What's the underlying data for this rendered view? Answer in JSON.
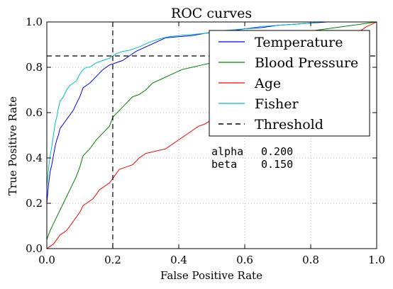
{
  "chart_data": {
    "type": "line",
    "title": "ROC curves",
    "xlabel": "False Positive Rate",
    "ylabel": "True Positive Rate",
    "xlim": [
      0.0,
      1.0
    ],
    "ylim": [
      0.0,
      1.0
    ],
    "xticks": [
      "0.0",
      "0.2",
      "0.4",
      "0.6",
      "0.8",
      "1.0"
    ],
    "yticks": [
      "0.0",
      "0.2",
      "0.4",
      "0.6",
      "0.8",
      "1.0"
    ],
    "grid": true,
    "legend_position": "top-right",
    "series": [
      {
        "name": "Temperature",
        "color": "#0000ff",
        "points": [
          [
            0,
            0.2
          ],
          [
            0.005,
            0.28
          ],
          [
            0.01,
            0.34
          ],
          [
            0.015,
            0.37
          ],
          [
            0.02,
            0.41
          ],
          [
            0.025,
            0.45
          ],
          [
            0.03,
            0.48
          ],
          [
            0.035,
            0.5
          ],
          [
            0.04,
            0.53
          ],
          [
            0.05,
            0.55
          ],
          [
            0.06,
            0.57
          ],
          [
            0.07,
            0.59
          ],
          [
            0.08,
            0.61
          ],
          [
            0.09,
            0.64
          ],
          [
            0.1,
            0.67
          ],
          [
            0.11,
            0.71
          ],
          [
            0.13,
            0.73
          ],
          [
            0.15,
            0.76
          ],
          [
            0.17,
            0.79
          ],
          [
            0.19,
            0.81
          ],
          [
            0.21,
            0.82
          ],
          [
            0.23,
            0.83
          ],
          [
            0.25,
            0.85
          ],
          [
            0.27,
            0.87
          ],
          [
            0.3,
            0.89
          ],
          [
            0.33,
            0.91
          ],
          [
            0.36,
            0.93
          ],
          [
            0.4,
            0.935
          ],
          [
            0.44,
            0.94
          ],
          [
            0.48,
            0.95
          ],
          [
            0.52,
            0.955
          ],
          [
            0.56,
            0.96
          ],
          [
            0.6,
            0.97
          ],
          [
            0.65,
            0.975
          ],
          [
            0.7,
            0.985
          ],
          [
            0.75,
            0.99
          ],
          [
            0.8,
            0.995
          ],
          [
            0.85,
            1.0
          ],
          [
            1.0,
            1.0
          ]
        ]
      },
      {
        "name": "Blood Pressure",
        "color": "#008000",
        "points": [
          [
            0,
            0.04
          ],
          [
            0.005,
            0.06
          ],
          [
            0.01,
            0.08
          ],
          [
            0.02,
            0.11
          ],
          [
            0.03,
            0.14
          ],
          [
            0.04,
            0.17
          ],
          [
            0.05,
            0.2
          ],
          [
            0.06,
            0.23
          ],
          [
            0.07,
            0.26
          ],
          [
            0.08,
            0.29
          ],
          [
            0.09,
            0.32
          ],
          [
            0.1,
            0.36
          ],
          [
            0.11,
            0.41
          ],
          [
            0.13,
            0.44
          ],
          [
            0.15,
            0.48
          ],
          [
            0.17,
            0.51
          ],
          [
            0.19,
            0.54
          ],
          [
            0.2,
            0.58
          ],
          [
            0.22,
            0.61
          ],
          [
            0.24,
            0.64
          ],
          [
            0.26,
            0.67
          ],
          [
            0.28,
            0.68
          ],
          [
            0.3,
            0.7
          ],
          [
            0.32,
            0.73
          ],
          [
            0.35,
            0.75
          ],
          [
            0.38,
            0.77
          ],
          [
            0.41,
            0.79
          ],
          [
            0.44,
            0.8
          ],
          [
            0.47,
            0.81
          ],
          [
            0.5,
            0.82
          ],
          [
            0.53,
            0.83
          ],
          [
            0.56,
            0.85
          ],
          [
            0.6,
            0.87
          ],
          [
            0.65,
            0.9
          ],
          [
            0.7,
            0.93
          ],
          [
            0.75,
            0.95
          ],
          [
            0.8,
            0.96
          ],
          [
            0.85,
            0.97
          ],
          [
            0.9,
            0.98
          ],
          [
            0.95,
            0.99
          ],
          [
            1.0,
            1.0
          ]
        ]
      },
      {
        "name": "Age",
        "color": "#ff0000",
        "points": [
          [
            0,
            0.0
          ],
          [
            0.01,
            0.01
          ],
          [
            0.02,
            0.02
          ],
          [
            0.03,
            0.04
          ],
          [
            0.04,
            0.06
          ],
          [
            0.05,
            0.07
          ],
          [
            0.06,
            0.08
          ],
          [
            0.07,
            0.1
          ],
          [
            0.08,
            0.12
          ],
          [
            0.09,
            0.14
          ],
          [
            0.1,
            0.16
          ],
          [
            0.11,
            0.19
          ],
          [
            0.12,
            0.2
          ],
          [
            0.13,
            0.21
          ],
          [
            0.14,
            0.22
          ],
          [
            0.15,
            0.24
          ],
          [
            0.16,
            0.26
          ],
          [
            0.17,
            0.27
          ],
          [
            0.18,
            0.28
          ],
          [
            0.19,
            0.29
          ],
          [
            0.2,
            0.31
          ],
          [
            0.21,
            0.33
          ],
          [
            0.22,
            0.35
          ],
          [
            0.24,
            0.36
          ],
          [
            0.26,
            0.37
          ],
          [
            0.28,
            0.4
          ],
          [
            0.3,
            0.42
          ],
          [
            0.33,
            0.43
          ],
          [
            0.36,
            0.44
          ],
          [
            0.38,
            0.46
          ],
          [
            0.4,
            0.48
          ],
          [
            0.42,
            0.5
          ],
          [
            0.44,
            0.52
          ],
          [
            0.46,
            0.54
          ],
          [
            0.48,
            0.55
          ],
          [
            0.5,
            0.57
          ],
          [
            0.53,
            0.6
          ],
          [
            0.56,
            0.63
          ],
          [
            0.6,
            0.66
          ],
          [
            0.65,
            0.7
          ],
          [
            0.7,
            0.75
          ],
          [
            0.75,
            0.8
          ],
          [
            0.8,
            0.85
          ],
          [
            0.85,
            0.88
          ],
          [
            0.9,
            0.92
          ],
          [
            0.95,
            0.96
          ],
          [
            0.97,
            0.98
          ],
          [
            1.0,
            1.0
          ]
        ]
      },
      {
        "name": "Fisher",
        "color": "#00bfbf",
        "points": [
          [
            0,
            0.27
          ],
          [
            0.005,
            0.35
          ],
          [
            0.01,
            0.41
          ],
          [
            0.015,
            0.45
          ],
          [
            0.02,
            0.5
          ],
          [
            0.025,
            0.55
          ],
          [
            0.03,
            0.58
          ],
          [
            0.035,
            0.62
          ],
          [
            0.04,
            0.65
          ],
          [
            0.05,
            0.67
          ],
          [
            0.06,
            0.7
          ],
          [
            0.07,
            0.72
          ],
          [
            0.08,
            0.73
          ],
          [
            0.09,
            0.74
          ],
          [
            0.1,
            0.77
          ],
          [
            0.11,
            0.79
          ],
          [
            0.12,
            0.8
          ],
          [
            0.13,
            0.8
          ],
          [
            0.15,
            0.82
          ],
          [
            0.17,
            0.83
          ],
          [
            0.19,
            0.84
          ],
          [
            0.21,
            0.86
          ],
          [
            0.23,
            0.87
          ],
          [
            0.25,
            0.875
          ],
          [
            0.28,
            0.89
          ],
          [
            0.31,
            0.91
          ],
          [
            0.34,
            0.925
          ],
          [
            0.37,
            0.935
          ],
          [
            0.4,
            0.94
          ],
          [
            0.44,
            0.945
          ],
          [
            0.48,
            0.95
          ],
          [
            0.52,
            0.96
          ],
          [
            0.56,
            0.965
          ],
          [
            0.6,
            0.97
          ],
          [
            0.65,
            0.98
          ],
          [
            0.7,
            0.985
          ],
          [
            0.75,
            0.99
          ],
          [
            0.8,
            0.995
          ],
          [
            0.83,
            1.0
          ],
          [
            1.0,
            1.0
          ]
        ]
      },
      {
        "name": "Threshold",
        "color": "#000000",
        "dashed": true,
        "vertical_x": 0.2,
        "horizontal_y": 0.85
      }
    ],
    "annotations": [
      {
        "label": "alpha",
        "value": "0.200"
      },
      {
        "label": "beta",
        "value": "0.150"
      }
    ]
  }
}
